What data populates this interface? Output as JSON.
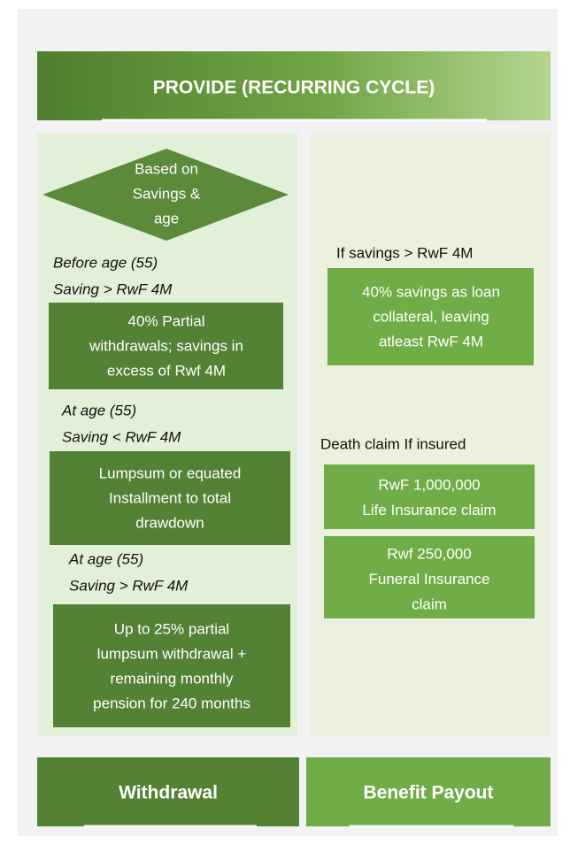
{
  "header": {
    "title": "PROVIDE (RECURRING CYCLE)"
  },
  "withdrawal": {
    "decision": [
      "Based on",
      "Savings &",
      "age"
    ],
    "branches": [
      {
        "condition": [
          "Before age (55)",
          "Saving > RwF 4M"
        ],
        "action": [
          "40% Partial",
          "withdrawals; savings in",
          "excess of  Rwf 4M"
        ]
      },
      {
        "condition": [
          "At age (55)",
          "Saving < RwF 4M"
        ],
        "action": [
          "Lumpsum or equated",
          "Installment to total",
          "drawdown"
        ]
      },
      {
        "condition": [
          "At age (55)",
          "Saving > RwF 4M"
        ],
        "action": [
          "Up to 25% partial",
          "lumpsum withdrawal +",
          "remaining monthly",
          "pension for 240 months"
        ]
      }
    ],
    "label": "Withdrawal"
  },
  "benefit": {
    "loan": {
      "condition": "If savings > RwF 4M",
      "action": [
        "40% savings as loan",
        "collateral, leaving",
        "atleast RwF 4M"
      ]
    },
    "death": {
      "condition": "Death claim If insured",
      "claims": [
        [
          "RwF 1,000,000",
          "Life Insurance claim"
        ],
        [
          "Rwf 250,000",
          "Funeral Insurance",
          "claim"
        ]
      ]
    },
    "label": "Benefit Payout"
  }
}
